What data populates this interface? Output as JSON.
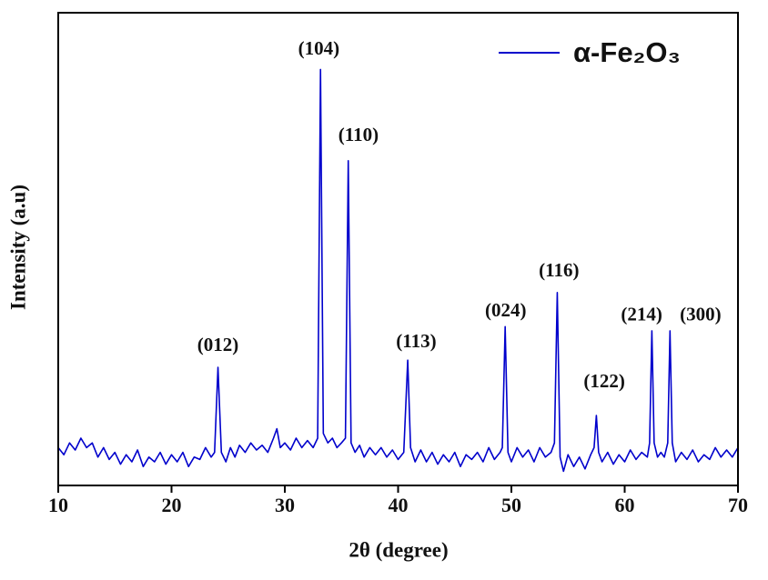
{
  "chart_data": {
    "type": "line",
    "xlabel": "2θ (degree)",
    "ylabel": "Intensity (a.u)",
    "xlim": [
      10,
      70
    ],
    "xticks": [
      10,
      20,
      30,
      40,
      50,
      60,
      70
    ],
    "ylim": [
      0,
      100
    ],
    "legend": "upper right",
    "x": [
      10,
      10.5,
      11,
      11.5,
      12,
      12.5,
      13,
      13.5,
      14,
      14.5,
      15,
      15.5,
      16,
      16.5,
      17,
      17.5,
      18,
      18.5,
      19,
      19.5,
      20,
      20.5,
      21,
      21.5,
      22,
      22.5,
      23,
      23.5,
      23.8,
      24.1,
      24.4,
      24.8,
      25.2,
      25.6,
      26,
      26.5,
      27,
      27.5,
      28,
      28.5,
      29,
      29.3,
      29.6,
      30,
      30.5,
      31,
      31.5,
      32,
      32.5,
      32.9,
      33.15,
      33.4,
      33.8,
      34.2,
      34.6,
      35,
      35.35,
      35.6,
      35.85,
      36.2,
      36.6,
      37,
      37.5,
      38,
      38.5,
      39,
      39.5,
      40,
      40.5,
      40.85,
      41.1,
      41.5,
      42,
      42.5,
      43,
      43.5,
      44,
      44.5,
      45,
      45.5,
      46,
      46.5,
      47,
      47.5,
      48,
      48.5,
      49,
      49.2,
      49.45,
      49.7,
      50,
      50.5,
      51,
      51.5,
      52,
      52.5,
      53,
      53.5,
      53.8,
      54.05,
      54.3,
      54.6,
      55,
      55.5,
      56,
      56.5,
      57,
      57.3,
      57.5,
      57.7,
      58,
      58.5,
      59,
      59.5,
      60,
      60.5,
      61,
      61.5,
      62,
      62.2,
      62.4,
      62.6,
      62.9,
      63.2,
      63.5,
      63.8,
      64,
      64.2,
      64.5,
      65,
      65.5,
      66,
      66.5,
      67,
      67.5,
      68,
      68.5,
      69,
      69.5,
      70
    ],
    "series": [
      {
        "name": "α-Fe₂O₃",
        "color": "#0000cc",
        "values": [
          8,
          6.5,
          9,
          7.5,
          10,
          8,
          9,
          6,
          8,
          5.5,
          7,
          4.5,
          6.5,
          5,
          7.5,
          4,
          6,
          5,
          7,
          4.5,
          6.5,
          5,
          7,
          4,
          6,
          5.5,
          8,
          6,
          7,
          25,
          7,
          5,
          8,
          6,
          8.5,
          7,
          9,
          7.5,
          8.5,
          7,
          10,
          12,
          8,
          9,
          7.5,
          10,
          8,
          9.5,
          8,
          10,
          88,
          11,
          9,
          10,
          8,
          9,
          10,
          68.7,
          9,
          7,
          8.5,
          6,
          8,
          6.5,
          8,
          6,
          7.5,
          5.5,
          7,
          26.5,
          8,
          5,
          7.5,
          5,
          7,
          4.5,
          6.5,
          5,
          7,
          4,
          6.5,
          5.5,
          7,
          5,
          8,
          5.5,
          7,
          8,
          33.6,
          7,
          5,
          8,
          6,
          7.5,
          5,
          8,
          6,
          7,
          9,
          40.8,
          6,
          3,
          6.5,
          4,
          6,
          3.5,
          6.5,
          8,
          14.8,
          7,
          5,
          7,
          4.5,
          6.5,
          5,
          7.5,
          5.5,
          7,
          6,
          9,
          32.7,
          9,
          6,
          7,
          6,
          9,
          32.7,
          9,
          5,
          7,
          5.5,
          7.5,
          5,
          6.5,
          5.5,
          8,
          6,
          7.5,
          6,
          8
        ]
      }
    ],
    "annotations": [
      {
        "text": "(012)",
        "x": 24.1,
        "y": 29.4
      },
      {
        "text": "(104)",
        "x": 33.0,
        "y": 92.1
      },
      {
        "text": "(110)",
        "x": 36.5,
        "y": 73.8
      },
      {
        "text": "(113)",
        "x": 41.6,
        "y": 30.2
      },
      {
        "text": "(024)",
        "x": 49.5,
        "y": 36.7
      },
      {
        "text": "(116)",
        "x": 54.2,
        "y": 45.2
      },
      {
        "text": "(122)",
        "x": 58.2,
        "y": 21.7
      },
      {
        "text": "(214)",
        "x": 61.5,
        "y": 35.8
      },
      {
        "text": "(300)",
        "x": 66.7,
        "y": 35.8
      }
    ]
  }
}
